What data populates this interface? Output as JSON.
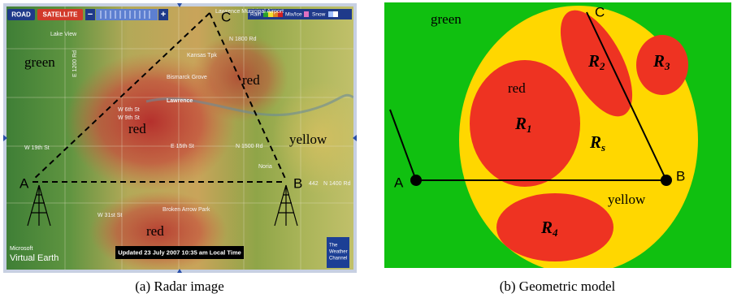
{
  "panel_a": {
    "controls": {
      "road": "ROAD",
      "satellite": "SATELLITE",
      "zoom_out": "−",
      "zoom_in": "+"
    },
    "legend": [
      "Rain",
      "Mix/Ice",
      "Snow"
    ],
    "region_labels": [
      "green",
      "red",
      "red",
      "yellow",
      "red"
    ],
    "points": [
      "A",
      "B",
      "C"
    ],
    "map_labels": [
      "Lawrence Municipal Airport",
      "Lake View",
      "N 1800 Rd",
      "Kansas Tpk",
      "Bismarck Grove",
      "Lawrence",
      "W 6th St",
      "W 9th St",
      "W 19th St",
      "E 15th St",
      "N 1500 Rd",
      "N 1400 Rd",
      "442",
      "Broken Arrow Park",
      "W 31st St",
      "Noria",
      "E 1200 Rd"
    ],
    "timestamp": "Updated 23 July 2007 10:35 am Local Time",
    "logo_microsoft": [
      "Microsoft",
      "Virtual Earth"
    ],
    "logo_weather": [
      "The",
      "Weather",
      "Channel"
    ],
    "caption": "(a) Radar image"
  },
  "panel_b": {
    "region_labels": [
      "green",
      "red",
      "yellow"
    ],
    "points": [
      "A",
      "B",
      "C"
    ],
    "regions": [
      {
        "letter": "R",
        "sub": "1"
      },
      {
        "letter": "R",
        "sub": "2"
      },
      {
        "letter": "R",
        "sub": "3"
      },
      {
        "letter": "R",
        "sub": "4"
      },
      {
        "letter": "R",
        "sub": "s"
      }
    ],
    "caption": "(b) Geometric model"
  }
}
